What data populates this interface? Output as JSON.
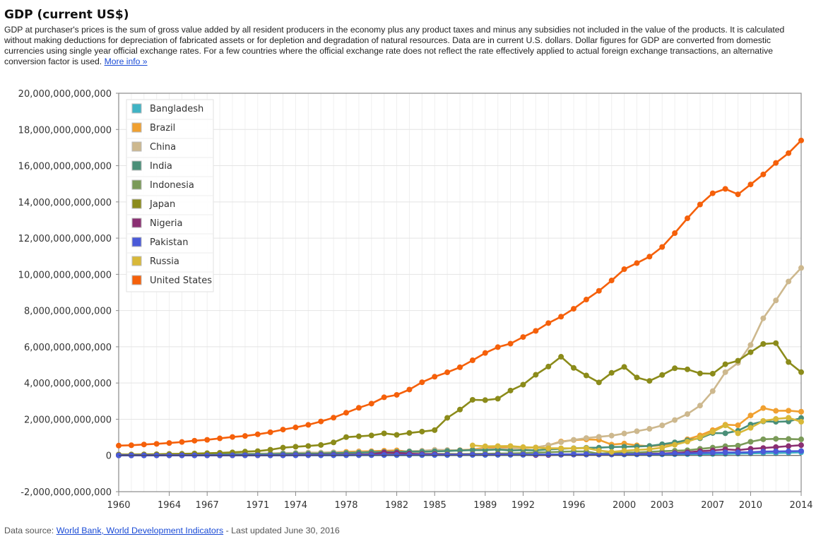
{
  "page": {
    "title": "GDP (current US$)",
    "description": "GDP at purchaser's prices is the sum of gross value added by all resident producers in the economy plus any product taxes and minus any subsidies not included in the value of the products. It is calculated without making deductions for depreciation of fabricated assets or for depletion and degradation of natural resources. Data are in current U.S. dollars. Dollar figures for GDP are converted from domestic currencies using single year official exchange rates. For a few countries where the official exchange rate does not reflect the rate effectively applied to actual foreign exchange transactions, an alternative conversion factor is used.",
    "more_info_link": "More info »",
    "source_prefix": "Data source: ",
    "source_link": "World Bank, World Development Indicators",
    "source_suffix": " - Last updated June 30, 2016"
  },
  "chart_data": {
    "type": "line",
    "title": "",
    "xlabel": "",
    "ylabel": "",
    "xlim": [
      1960,
      2014
    ],
    "ylim": [
      -2000000000000,
      20000000000000
    ],
    "x_ticks": [
      1960,
      1964,
      1967,
      1971,
      1974,
      1978,
      1982,
      1985,
      1989,
      1992,
      1996,
      2000,
      2003,
      2007,
      2010,
      2014
    ],
    "y_ticks": [
      -2000000000000,
      0,
      2000000000000,
      4000000000000,
      6000000000000,
      8000000000000,
      10000000000000,
      12000000000000,
      14000000000000,
      16000000000000,
      18000000000000,
      20000000000000
    ],
    "y_tick_labels": [
      "-2,000,000,000,000",
      "0",
      "2,000,000,000,000",
      "4,000,000,000,000",
      "6,000,000,000,000",
      "8,000,000,000,000",
      "10,000,000,000,000",
      "12,000,000,000,000",
      "14,000,000,000,000",
      "16,000,000,000,000",
      "18,000,000,000,000",
      "20,000,000,000,000"
    ],
    "grid": true,
    "legend_position": "top-left",
    "x": [
      1960,
      1961,
      1962,
      1963,
      1964,
      1965,
      1966,
      1967,
      1968,
      1969,
      1970,
      1971,
      1972,
      1973,
      1974,
      1975,
      1976,
      1977,
      1978,
      1979,
      1980,
      1981,
      1982,
      1983,
      1984,
      1985,
      1986,
      1987,
      1988,
      1989,
      1990,
      1991,
      1992,
      1993,
      1994,
      1995,
      1996,
      1997,
      1998,
      1999,
      2000,
      2001,
      2002,
      2003,
      2004,
      2005,
      2006,
      2007,
      2008,
      2009,
      2010,
      2011,
      2012,
      2013,
      2014
    ],
    "series": [
      {
        "name": "Bangladesh",
        "color": "#3fb3c4",
        "values": [
          0.004,
          0.005,
          0.006,
          0.006,
          0.006,
          0.007,
          0.007,
          0.008,
          0.009,
          0.009,
          0.009,
          0.01,
          0.006,
          0.008,
          0.012,
          0.019,
          0.011,
          0.01,
          0.013,
          0.015,
          0.018,
          0.02,
          0.018,
          0.017,
          0.018,
          0.022,
          0.021,
          0.024,
          0.026,
          0.026,
          0.03,
          0.031,
          0.031,
          0.033,
          0.034,
          0.038,
          0.046,
          0.048,
          0.05,
          0.051,
          0.053,
          0.054,
          0.055,
          0.06,
          0.065,
          0.07,
          0.072,
          0.079,
          0.091,
          0.102,
          0.115,
          0.129,
          0.133,
          0.15,
          0.173
        ]
      },
      {
        "name": "Brazil",
        "color": "#f0a030",
        "values": [
          0.015,
          0.015,
          0.02,
          0.024,
          0.021,
          0.022,
          0.028,
          0.031,
          0.034,
          0.037,
          0.042,
          0.049,
          0.058,
          0.08,
          0.105,
          0.124,
          0.153,
          0.176,
          0.2,
          0.222,
          0.235,
          0.263,
          0.281,
          0.203,
          0.209,
          0.223,
          0.268,
          0.294,
          0.33,
          0.425,
          0.462,
          0.407,
          0.391,
          0.438,
          0.558,
          0.769,
          0.85,
          0.883,
          0.864,
          0.6,
          0.655,
          0.56,
          0.51,
          0.558,
          0.669,
          0.892,
          1.108,
          1.397,
          1.696,
          1.667,
          2.209,
          2.616,
          2.465,
          2.473,
          2.417
        ]
      },
      {
        "name": "China",
        "color": "#cdb88e",
        "values": [
          0.06,
          0.05,
          0.047,
          0.051,
          0.06,
          0.07,
          0.076,
          0.073,
          0.071,
          0.079,
          0.093,
          0.1,
          0.114,
          0.139,
          0.144,
          0.163,
          0.154,
          0.175,
          0.149,
          0.178,
          0.191,
          0.196,
          0.205,
          0.231,
          0.26,
          0.309,
          0.3,
          0.273,
          0.312,
          0.348,
          0.361,
          0.383,
          0.427,
          0.445,
          0.564,
          0.734,
          0.864,
          0.962,
          1.029,
          1.094,
          1.211,
          1.339,
          1.471,
          1.66,
          1.955,
          2.286,
          2.752,
          3.552,
          4.598,
          5.11,
          6.101,
          7.573,
          8.561,
          9.607,
          10.354
        ]
      },
      {
        "name": "India",
        "color": "#4a8f78",
        "values": [
          0.037,
          0.039,
          0.042,
          0.048,
          0.056,
          0.059,
          0.046,
          0.05,
          0.053,
          0.058,
          0.062,
          0.067,
          0.071,
          0.085,
          0.099,
          0.098,
          0.102,
          0.121,
          0.137,
          0.153,
          0.186,
          0.191,
          0.198,
          0.215,
          0.209,
          0.229,
          0.246,
          0.275,
          0.293,
          0.292,
          0.327,
          0.274,
          0.293,
          0.284,
          0.333,
          0.367,
          0.4,
          0.423,
          0.429,
          0.467,
          0.477,
          0.494,
          0.524,
          0.618,
          0.722,
          0.834,
          0.949,
          1.239,
          1.224,
          1.365,
          1.708,
          1.88,
          1.859,
          1.876,
          2.066
        ]
      },
      {
        "name": "Indonesia",
        "color": "#7a9a58",
        "values": [
          0.01,
          0.01,
          0.01,
          0.01,
          0.01,
          0.01,
          0.01,
          0.01,
          0.01,
          0.01,
          0.01,
          0.01,
          0.011,
          0.016,
          0.026,
          0.031,
          0.036,
          0.045,
          0.051,
          0.051,
          0.072,
          0.085,
          0.09,
          0.081,
          0.085,
          0.087,
          0.08,
          0.075,
          0.084,
          0.094,
          0.106,
          0.116,
          0.128,
          0.158,
          0.177,
          0.202,
          0.227,
          0.215,
          0.096,
          0.141,
          0.165,
          0.16,
          0.196,
          0.235,
          0.257,
          0.286,
          0.365,
          0.432,
          0.51,
          0.54,
          0.755,
          0.893,
          0.918,
          0.91,
          0.889
        ]
      },
      {
        "name": "Japan",
        "color": "#8b8b1a",
        "values": [
          0.044,
          0.054,
          0.06,
          0.069,
          0.082,
          0.091,
          0.106,
          0.124,
          0.146,
          0.172,
          0.212,
          0.24,
          0.318,
          0.432,
          0.48,
          0.522,
          0.577,
          0.719,
          1.013,
          1.056,
          1.105,
          1.218,
          1.135,
          1.243,
          1.318,
          1.399,
          2.078,
          2.533,
          3.072,
          3.054,
          3.133,
          3.584,
          3.909,
          4.454,
          4.907,
          5.449,
          4.834,
          4.415,
          4.033,
          4.562,
          4.888,
          4.304,
          4.115,
          4.445,
          4.815,
          4.755,
          4.53,
          4.515,
          5.038,
          5.231,
          5.7,
          6.157,
          6.203,
          5.156,
          4.601
        ]
      },
      {
        "name": "Nigeria",
        "color": "#8a2f72",
        "values": [
          0.004,
          0.004,
          0.005,
          0.005,
          0.005,
          0.006,
          0.006,
          0.005,
          0.005,
          0.007,
          0.012,
          0.009,
          0.012,
          0.015,
          0.025,
          0.028,
          0.036,
          0.036,
          0.036,
          0.047,
          0.064,
          0.164,
          0.142,
          0.097,
          0.073,
          0.073,
          0.049,
          0.052,
          0.049,
          0.044,
          0.054,
          0.049,
          0.048,
          0.021,
          0.023,
          0.044,
          0.051,
          0.054,
          0.054,
          0.059,
          0.069,
          0.074,
          0.095,
          0.104,
          0.136,
          0.176,
          0.236,
          0.275,
          0.337,
          0.292,
          0.369,
          0.411,
          0.461,
          0.515,
          0.568
        ]
      },
      {
        "name": "Pakistan",
        "color": "#4a5ad8",
        "values": [
          0.004,
          0.004,
          0.004,
          0.005,
          0.005,
          0.005,
          0.006,
          0.006,
          0.007,
          0.007,
          0.01,
          0.01,
          0.007,
          0.006,
          0.008,
          0.011,
          0.013,
          0.015,
          0.017,
          0.019,
          0.023,
          0.028,
          0.031,
          0.028,
          0.031,
          0.031,
          0.031,
          0.033,
          0.038,
          0.04,
          0.04,
          0.045,
          0.048,
          0.051,
          0.052,
          0.06,
          0.063,
          0.062,
          0.062,
          0.062,
          0.074,
          0.072,
          0.072,
          0.083,
          0.097,
          0.109,
          0.137,
          0.152,
          0.17,
          0.168,
          0.177,
          0.214,
          0.224,
          0.231,
          0.244
        ]
      },
      {
        "name": "Russia",
        "color": "#d8b838",
        "values": [
          null,
          null,
          null,
          null,
          null,
          null,
          null,
          null,
          null,
          null,
          null,
          null,
          null,
          null,
          null,
          null,
          null,
          null,
          null,
          null,
          null,
          null,
          null,
          null,
          null,
          null,
          null,
          null,
          0.554,
          0.506,
          0.517,
          0.518,
          0.46,
          0.435,
          0.395,
          0.395,
          0.392,
          0.405,
          0.271,
          0.196,
          0.26,
          0.307,
          0.345,
          0.43,
          0.591,
          0.764,
          0.99,
          1.3,
          1.661,
          1.223,
          1.525,
          1.905,
          2.017,
          2.079,
          1.861
        ]
      },
      {
        "name": "United States",
        "color": "#f5600a",
        "values": [
          0.543,
          0.563,
          0.605,
          0.639,
          0.686,
          0.744,
          0.815,
          0.862,
          0.943,
          1.02,
          1.075,
          1.168,
          1.282,
          1.429,
          1.549,
          1.689,
          1.878,
          2.086,
          2.357,
          2.632,
          2.863,
          3.211,
          3.345,
          3.638,
          4.041,
          4.347,
          4.59,
          4.87,
          5.253,
          5.658,
          5.98,
          6.174,
          6.539,
          6.879,
          7.309,
          7.664,
          8.1,
          8.609,
          9.089,
          9.661,
          10.285,
          10.622,
          10.978,
          11.511,
          12.275,
          13.094,
          13.856,
          14.478,
          14.719,
          14.419,
          14.964,
          15.518,
          16.155,
          16.692,
          17.393
        ]
      }
    ],
    "values_unit_note": "series values are in trillions of current US$"
  }
}
